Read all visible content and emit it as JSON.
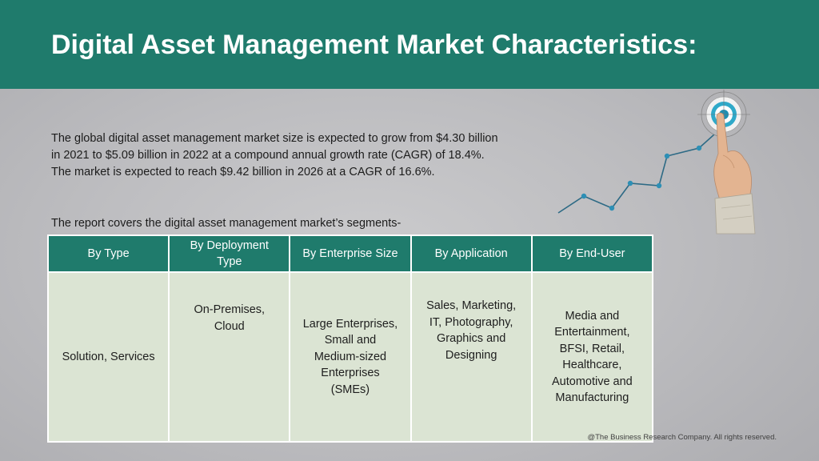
{
  "header": {
    "title": "Digital Asset Management Market Characteristics:"
  },
  "intro": {
    "lines": [
      "The global digital asset management market size is expected to grow from $4.30 billion",
      "in 2021 to $5.09 billion in 2022 at a compound annual growth rate (CAGR) of 18.4%.",
      "The market is expected to reach $9.42 billion in 2026 at a CAGR of 16.6%."
    ]
  },
  "segments_label": "The report covers the digital asset management market’s segments-",
  "table": {
    "headers": [
      [
        "By Type"
      ],
      [
        "By Deployment",
        "Type"
      ],
      [
        "By Enterprise Size"
      ],
      [
        "By Application"
      ],
      [
        "By End-User"
      ]
    ],
    "cells": [
      [
        "Solution, Services"
      ],
      [
        "On-Premises,",
        "Cloud"
      ],
      [
        "Large Enterprises,",
        "Small and",
        "Medium-sized",
        "Enterprises",
        "(SMEs)"
      ],
      [
        "Sales, Marketing,",
        "IT, Photography,",
        "Graphics and",
        "Designing"
      ],
      [
        "Media and",
        "Entertainment,",
        "BFSI, Retail,",
        "Healthcare,",
        "Automotive and",
        "Manufacturing"
      ]
    ]
  },
  "footer": "@The Business Research Company. All rights reserved.",
  "colors": {
    "header_bg": "#1f7b6c",
    "table_header_bg": "#1f7b6c",
    "table_cell_bg": "#dbe4d3",
    "trend_line": "#2d6a85"
  },
  "graphic": {
    "icons": [
      "growth-line-icon",
      "target-icon",
      "pointing-hand-icon"
    ]
  }
}
